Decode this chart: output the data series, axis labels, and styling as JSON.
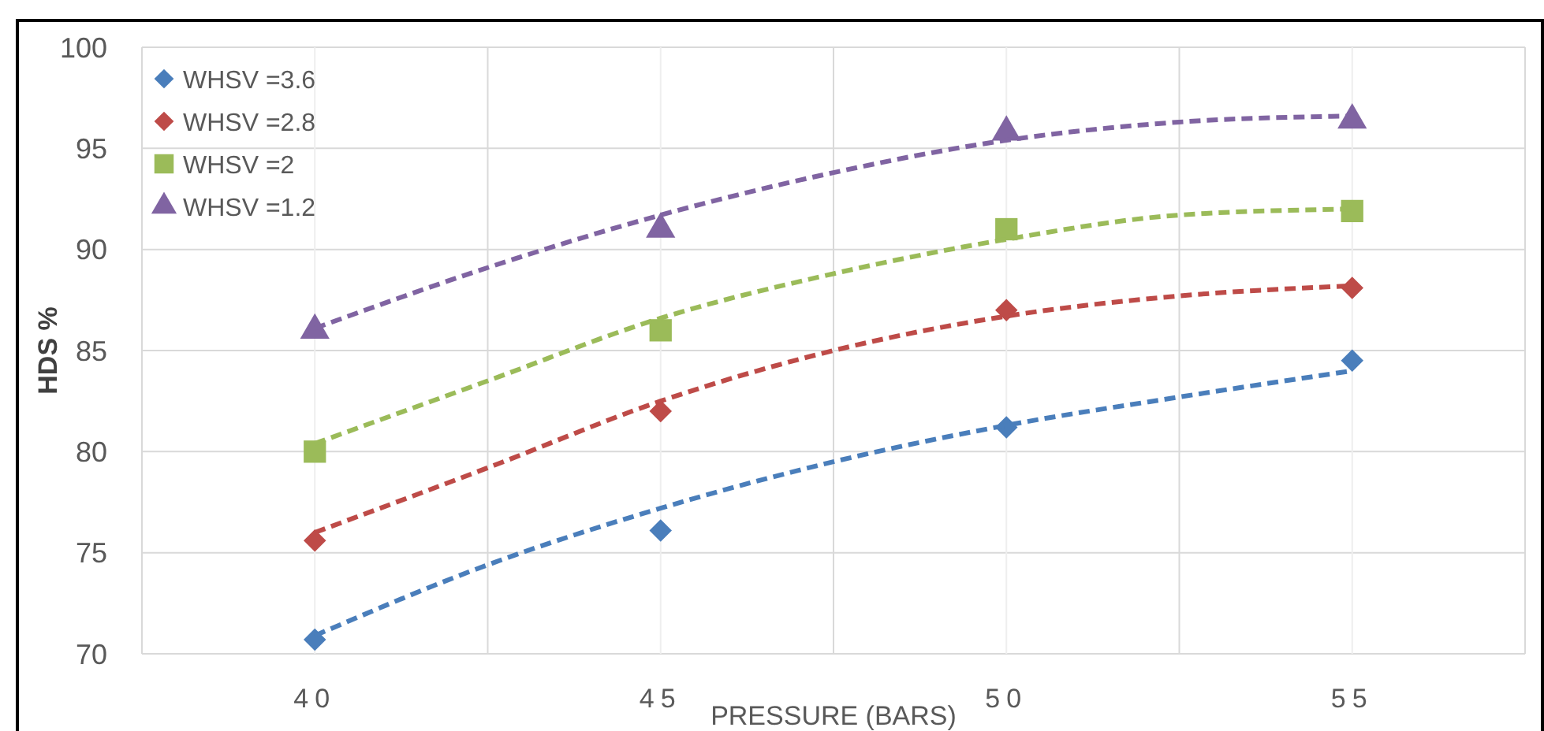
{
  "chart_data": {
    "type": "scatter",
    "xlabel": "PRESSURE (BARS)",
    "ylabel": "HDS %",
    "x": [
      40,
      45,
      50,
      55
    ],
    "xlim": [
      37.5,
      57.5
    ],
    "xticks": [
      {
        "value": 37.5,
        "label": null
      },
      40,
      {
        "value": 42.5,
        "label": null
      },
      45,
      {
        "value": 47.5,
        "label": null
      },
      50,
      {
        "value": 52.5,
        "label": null
      },
      55,
      {
        "value": 57.5,
        "label": null
      }
    ],
    "ylim": [
      70,
      100
    ],
    "yticks": [
      70,
      75,
      80,
      85,
      90,
      95,
      100
    ],
    "grid": true,
    "legend": "top left",
    "series": [
      {
        "name": "WHSV =3.6",
        "color": "#4a7ebb",
        "marker": "diamond",
        "values": [
          70.7,
          76.1,
          81.2,
          84.5
        ]
      },
      {
        "name": "WHSV =2.8",
        "color": "#be4b48",
        "marker": "diamond",
        "values": [
          75.6,
          82.0,
          87.0,
          88.1
        ]
      },
      {
        "name": "WHSV =2",
        "color": "#9bbb59",
        "marker": "square",
        "values": [
          80.0,
          86.0,
          91.0,
          91.9
        ]
      },
      {
        "name": "WHSV =1.2",
        "color": "#8064a2",
        "marker": "triangle",
        "values": [
          86.0,
          91.0,
          95.8,
          96.4
        ]
      },
      {
        "type": "line",
        "color": "#4a7ebb",
        "marker": "none",
        "line_style": "dashed",
        "x": [
          40,
          42.5,
          45,
          47.5,
          50,
          52.5,
          55
        ],
        "values": [
          70.9,
          74.4,
          77.2,
          79.5,
          81.3,
          82.7,
          84.0
        ]
      },
      {
        "type": "line",
        "color": "#be4b48",
        "marker": "none",
        "line_style": "dashed",
        "x": [
          40,
          42.5,
          45,
          47.5,
          50,
          52.5,
          55
        ],
        "values": [
          76.0,
          79.2,
          82.5,
          85.0,
          86.7,
          87.7,
          88.2
        ]
      },
      {
        "type": "line",
        "color": "#9bbb59",
        "marker": "none",
        "line_style": "dashed",
        "x": [
          40,
          42.5,
          45,
          47.5,
          50,
          52.5,
          55
        ],
        "values": [
          80.4,
          83.5,
          86.6,
          88.8,
          90.5,
          91.7,
          92.0
        ]
      },
      {
        "type": "line",
        "color": "#8064a2",
        "marker": "none",
        "line_style": "dashed",
        "x": [
          40,
          42.5,
          45,
          47.5,
          50,
          52.5,
          55
        ],
        "values": [
          86.1,
          89.1,
          91.7,
          93.8,
          95.4,
          96.3,
          96.6
        ]
      }
    ]
  }
}
